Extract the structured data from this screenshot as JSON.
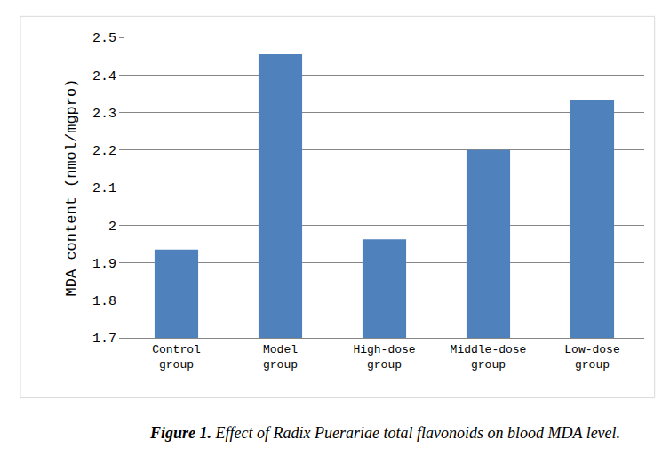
{
  "chart_data": {
    "type": "bar",
    "title": "Figure 1. Effect of Radix Puerariae total flavonoids on blood MDA level.",
    "y_label": "MDA content (nmol/mgpro)",
    "categories": [
      "Control group",
      "Model group",
      "High-dose group",
      "Middle-dose group",
      "Low-dose group"
    ],
    "values": [
      1.935,
      2.455,
      1.962,
      2.2,
      2.333
    ],
    "color": "#4f81bd",
    "ylim": [
      1.7,
      2.5
    ],
    "yticks": [
      1.7,
      1.8,
      1.9,
      2,
      2.1,
      2.2,
      2.3,
      2.4,
      2.5
    ],
    "grid": true
  }
}
